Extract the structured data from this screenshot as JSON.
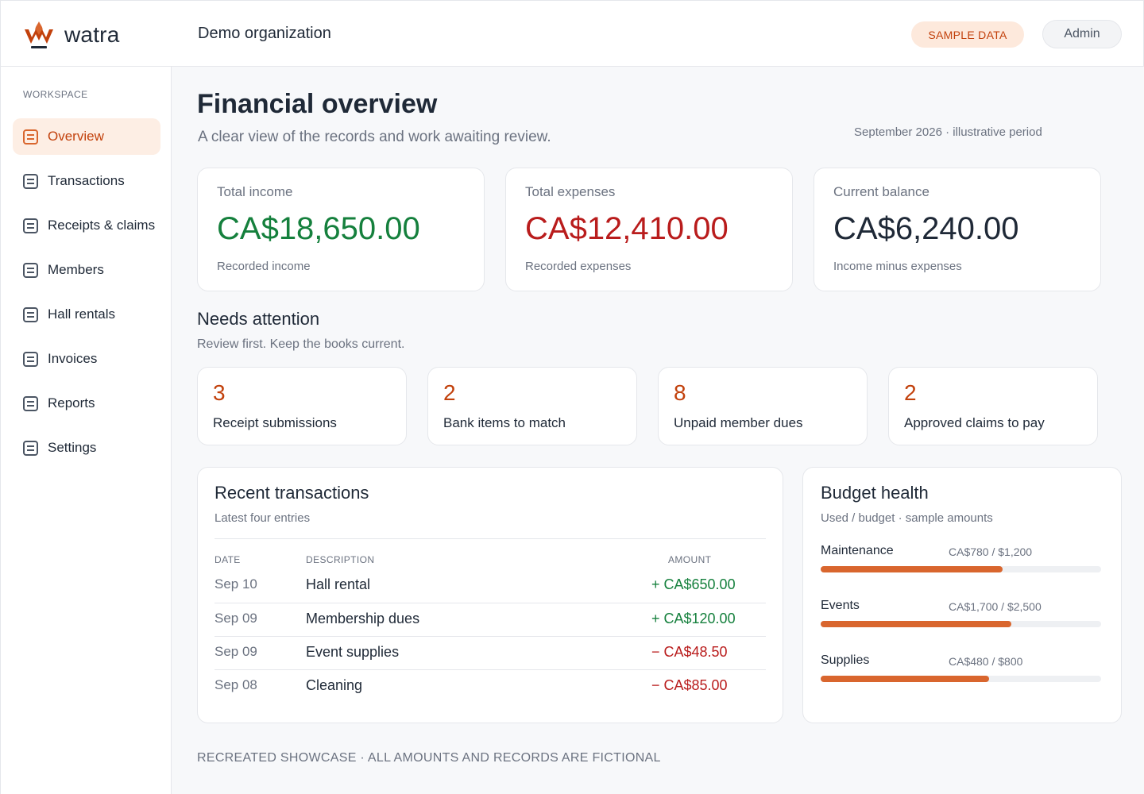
{
  "header": {
    "brand": "watra",
    "organization": "Demo organization",
    "sample_badge": "SAMPLE DATA",
    "user_button": "Admin",
    "colors": {
      "accent": "#d9662e",
      "accent_text": "#c2410c"
    }
  },
  "sidebar": {
    "section_label": "WORKSPACE",
    "items": [
      {
        "label": "Overview",
        "icon": "document-icon",
        "active": true
      },
      {
        "label": "Transactions",
        "icon": "document-icon",
        "active": false
      },
      {
        "label": "Receipts & claims",
        "icon": "document-icon",
        "active": false
      },
      {
        "label": "Members",
        "icon": "document-icon",
        "active": false
      },
      {
        "label": "Hall rentals",
        "icon": "document-icon",
        "active": false
      },
      {
        "label": "Invoices",
        "icon": "document-icon",
        "active": false
      },
      {
        "label": "Reports",
        "icon": "document-icon",
        "active": false
      },
      {
        "label": "Settings",
        "icon": "document-icon",
        "active": false
      }
    ]
  },
  "page": {
    "title": "Financial overview",
    "subtitle": "A clear view of the records and work awaiting review.",
    "period": "September 2026 · illustrative period"
  },
  "kpis": [
    {
      "label": "Total income",
      "value": "CA$18,650.00",
      "caption": "Recorded income",
      "color": "#15803d"
    },
    {
      "label": "Total expenses",
      "value": "CA$12,410.00",
      "caption": "Recorded expenses",
      "color": "#b91c1c"
    },
    {
      "label": "Current balance",
      "value": "CA$6,240.00",
      "caption": "Income minus expenses",
      "color": "#1f2937"
    }
  ],
  "attention": {
    "title": "Needs attention",
    "subtitle": "Review first. Keep the books current.",
    "items": [
      {
        "count": "3",
        "label": "Receipt submissions"
      },
      {
        "count": "2",
        "label": "Bank items to match"
      },
      {
        "count": "8",
        "label": "Unpaid member dues"
      },
      {
        "count": "2",
        "label": "Approved claims to pay"
      }
    ]
  },
  "transactions": {
    "title": "Recent transactions",
    "subtitle": "Latest four entries",
    "columns": {
      "date": "DATE",
      "description": "DESCRIPTION",
      "amount": "AMOUNT"
    },
    "rows": [
      {
        "date": "Sep 10",
        "description": "Hall rental",
        "amount": "+ CA$650.00",
        "direction": "in"
      },
      {
        "date": "Sep 09",
        "description": "Membership dues",
        "amount": "+ CA$120.00",
        "direction": "in"
      },
      {
        "date": "Sep 09",
        "description": "Event supplies",
        "amount": "− CA$48.50",
        "direction": "out"
      },
      {
        "date": "Sep 08",
        "description": "Cleaning",
        "amount": "− CA$85.00",
        "direction": "out"
      }
    ]
  },
  "budget": {
    "title": "Budget health",
    "subtitle": "Used / budget · sample amounts",
    "items": [
      {
        "name": "Maintenance",
        "amounts": "CA$780 / $1,200",
        "used_fraction": 0.65
      },
      {
        "name": "Events",
        "amounts": "CA$1,700 / $2,500",
        "used_fraction": 0.68
      },
      {
        "name": "Supplies",
        "amounts": "CA$480 / $800",
        "used_fraction": 0.6
      }
    ]
  },
  "footer": {
    "note": "RECREATED SHOWCASE · ALL AMOUNTS AND RECORDS ARE FICTIONAL"
  }
}
